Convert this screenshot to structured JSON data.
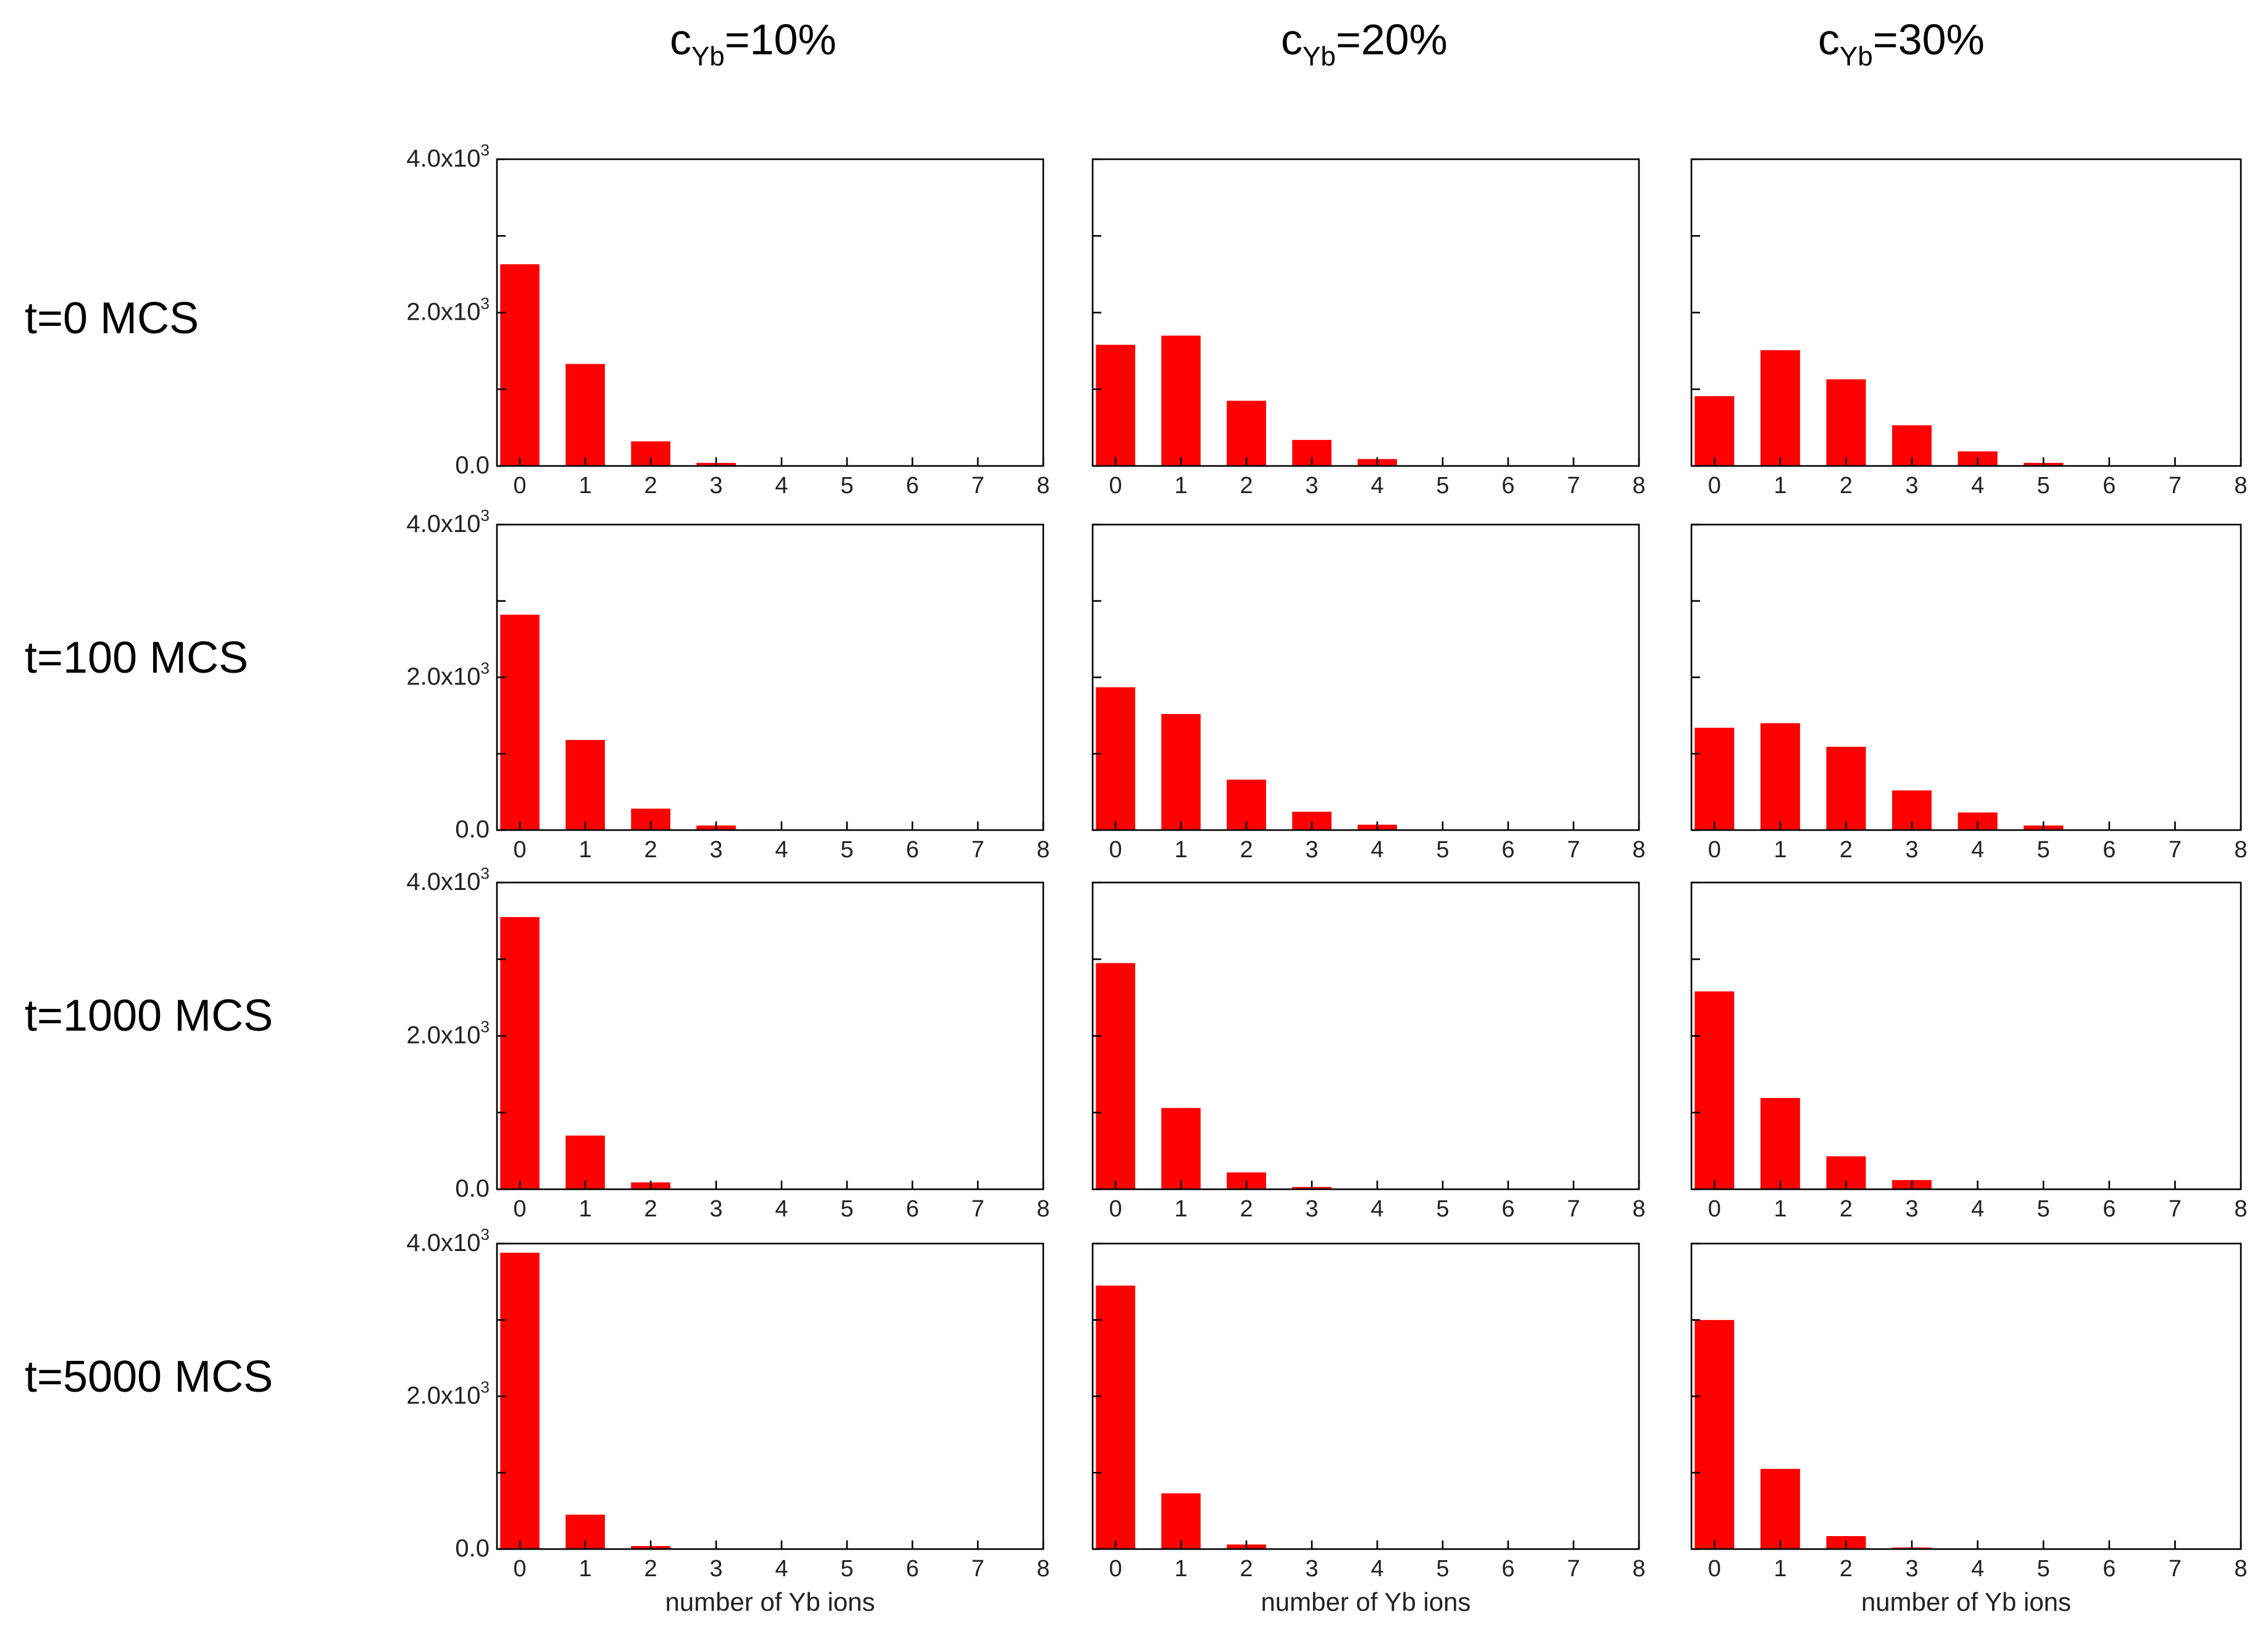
{
  "chart_data": {
    "type": "bar",
    "layout": "grid 4 rows x 3 columns",
    "bar_color": "#ff0000",
    "column_titles": [
      {
        "main": "c",
        "sub": "Yb",
        "suffix": "=10%"
      },
      {
        "main": "c",
        "sub": "Yb",
        "suffix": "=20%"
      },
      {
        "main": "c",
        "sub": "Yb",
        "suffix": "=30%"
      }
    ],
    "row_titles": [
      "t=0 MCS",
      "t=100 MCS",
      "t=1000 MCS",
      "t=5000 MCS"
    ],
    "xlabel": "number of Yb ions",
    "x_ticks": [
      "0",
      "1",
      "2",
      "3",
      "4",
      "5",
      "6",
      "7",
      "8"
    ],
    "x_range": [
      -0.35,
      8
    ],
    "y_range": [
      0,
      4000
    ],
    "y_ticks": [
      {
        "base": "0.0",
        "exp": ""
      },
      {
        "base": "2.0x10",
        "exp": "3"
      },
      {
        "base": "4.0x10",
        "exp": "3"
      }
    ],
    "categories": [
      0,
      1,
      2,
      3,
      4,
      5,
      6,
      7,
      8
    ],
    "panels": [
      {
        "row": 0,
        "col": 0,
        "values": [
          2630,
          1330,
          320,
          40,
          0,
          0,
          0,
          0,
          0
        ]
      },
      {
        "row": 0,
        "col": 1,
        "values": [
          1580,
          1700,
          850,
          340,
          90,
          0,
          0,
          0,
          0
        ]
      },
      {
        "row": 0,
        "col": 2,
        "values": [
          910,
          1510,
          1130,
          530,
          190,
          40,
          0,
          0,
          0
        ]
      },
      {
        "row": 1,
        "col": 0,
        "values": [
          2820,
          1180,
          280,
          60,
          0,
          0,
          0,
          0,
          0
        ]
      },
      {
        "row": 1,
        "col": 1,
        "values": [
          1870,
          1520,
          660,
          240,
          70,
          0,
          0,
          0,
          0
        ]
      },
      {
        "row": 1,
        "col": 2,
        "values": [
          1340,
          1400,
          1090,
          520,
          230,
          60,
          0,
          0,
          0
        ]
      },
      {
        "row": 2,
        "col": 0,
        "values": [
          3550,
          700,
          90,
          0,
          0,
          0,
          0,
          0,
          0
        ]
      },
      {
        "row": 2,
        "col": 1,
        "values": [
          2950,
          1060,
          220,
          30,
          0,
          0,
          0,
          0,
          0
        ]
      },
      {
        "row": 2,
        "col": 2,
        "values": [
          2580,
          1190,
          430,
          120,
          0,
          0,
          0,
          0,
          0
        ]
      },
      {
        "row": 3,
        "col": 0,
        "values": [
          3880,
          450,
          40,
          0,
          0,
          0,
          0,
          0,
          0
        ]
      },
      {
        "row": 3,
        "col": 1,
        "values": [
          3450,
          730,
          60,
          0,
          0,
          0,
          0,
          0,
          0
        ]
      },
      {
        "row": 3,
        "col": 2,
        "values": [
          3000,
          1050,
          170,
          20,
          0,
          0,
          0,
          0,
          0
        ]
      }
    ]
  }
}
